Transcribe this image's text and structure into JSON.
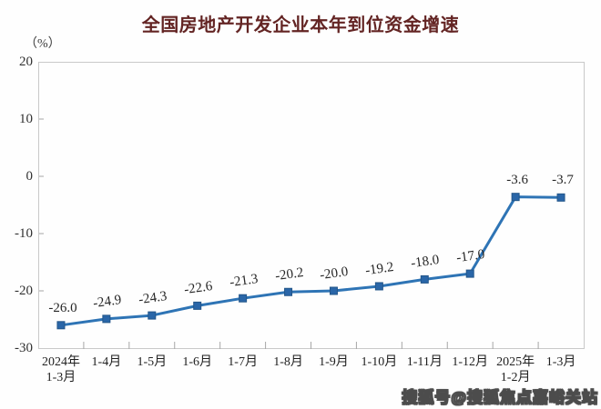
{
  "header": {
    "title": "全国房地产开发企业本年到位资金增速",
    "unit_label": "（%）"
  },
  "watermark": "搜狐号@搜狐焦点嘉峪关站",
  "colors": {
    "title": "#632423",
    "line": "#2E74B5",
    "marker": "#2A66A8",
    "marker_stroke": "#235689",
    "plot_border": "#c9c9c9",
    "tick": "#a6a6a6",
    "label_text": "#262626"
  },
  "chart_data": {
    "type": "line",
    "title": "全国房地产开发企业本年到位资金增速",
    "ylabel": "（%）",
    "categories": [
      "2024年\n1-3月",
      "1-4月",
      "1-5月",
      "1-6月",
      "1-7月",
      "1-8月",
      "1-9月",
      "1-10月",
      "1-11月",
      "1-12月",
      "2025年\n1-2月",
      "1-3月"
    ],
    "values": [
      -26.0,
      -24.9,
      -24.3,
      -22.6,
      -21.3,
      -20.2,
      -20.0,
      -19.2,
      -18.0,
      -17.0,
      -3.6,
      -3.7
    ],
    "data_labels": [
      "-26.0",
      "-24.9",
      "-24.3",
      "-22.6",
      "-21.3",
      "-20.2",
      "-20.0",
      "-19.2",
      "-18.0",
      "-17.0",
      "-3.6",
      "-3.7"
    ],
    "ylim": [
      -30,
      20
    ],
    "yticks": [
      20,
      10,
      0,
      -10,
      -20,
      -30
    ],
    "grid": false,
    "legend_position": "none",
    "marker": "square"
  }
}
